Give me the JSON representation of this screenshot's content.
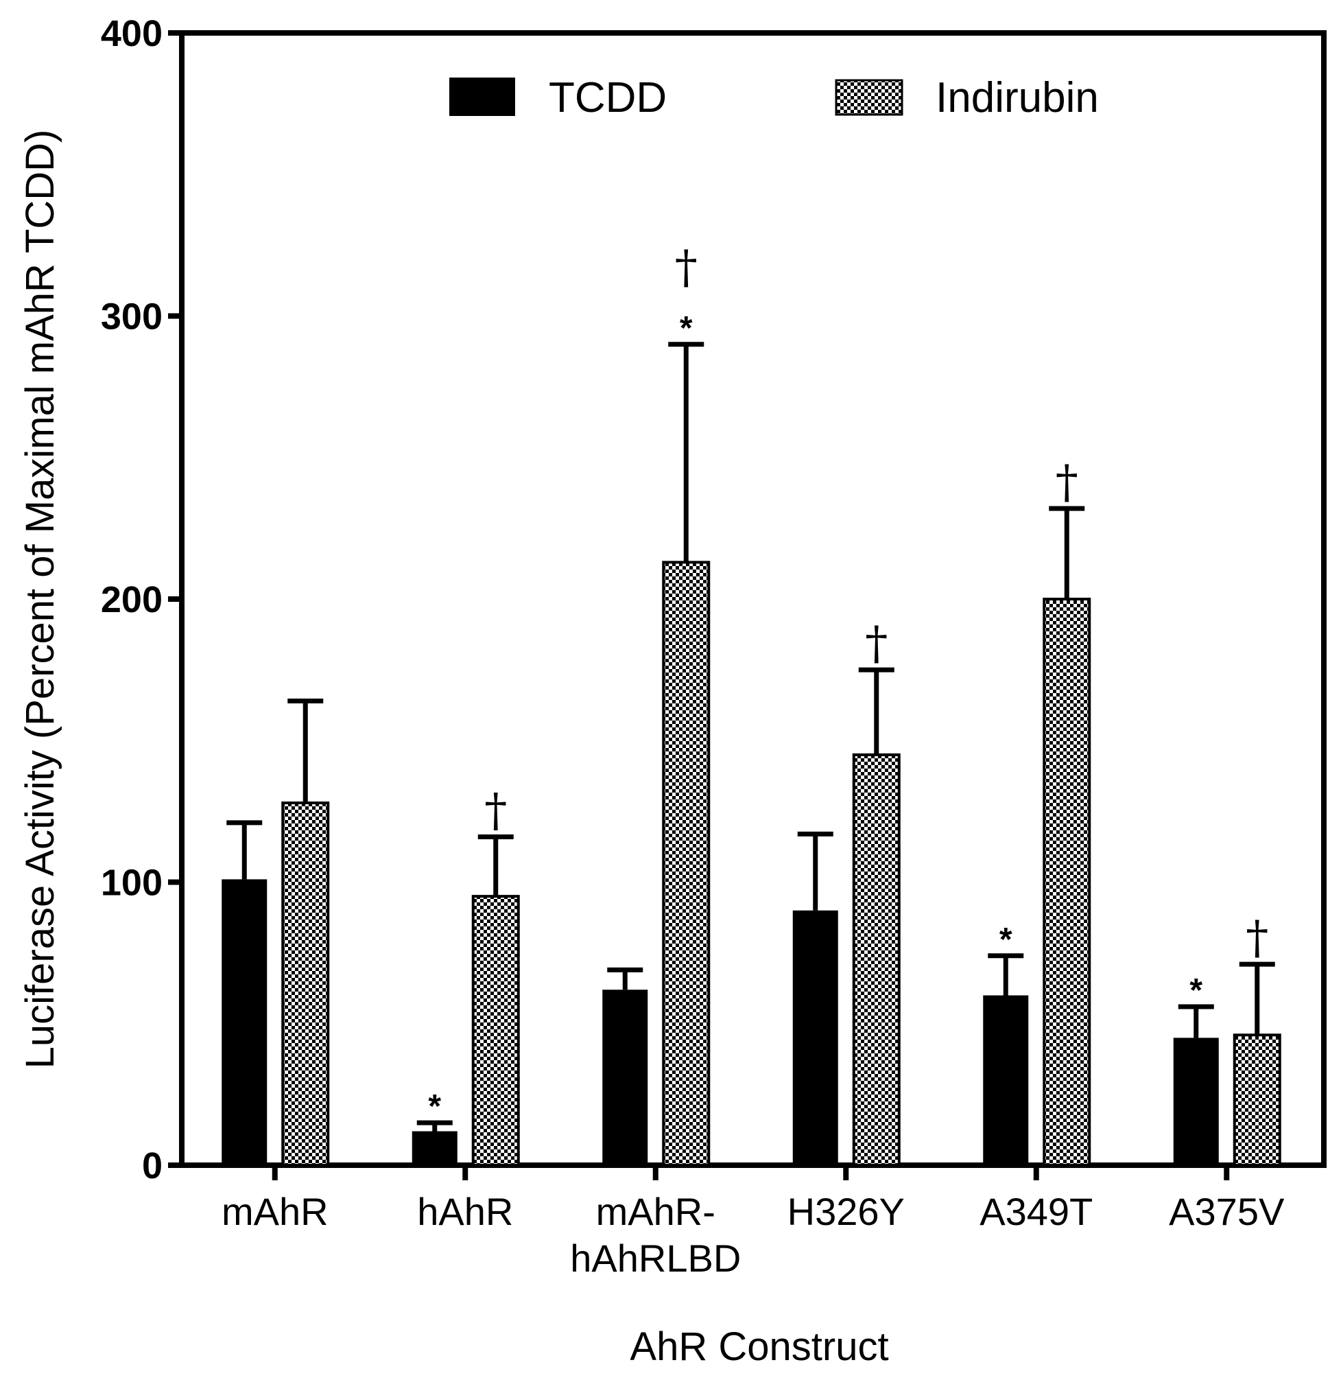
{
  "chart_data": {
    "type": "bar",
    "title": "",
    "xlabel": "AhR Construct",
    "ylabel": "Luciferase Activity (Percent of Maximal mAhR TCDD)",
    "ylim": [
      0,
      400
    ],
    "yticks": [
      0,
      100,
      200,
      300,
      400
    ],
    "grid": false,
    "legend_position": "top-center",
    "categories": [
      [
        "mAhR"
      ],
      [
        "hAhR"
      ],
      [
        "mAhR-",
        "hAhRLBD"
      ],
      [
        "H326Y"
      ],
      [
        "A349T"
      ],
      [
        "A375V"
      ]
    ],
    "series": [
      {
        "name": "TCDD",
        "fill": "solid",
        "color": "#000000",
        "values": [
          101,
          12,
          62,
          90,
          60,
          45
        ],
        "error": [
          20,
          3,
          7,
          27,
          14,
          11
        ],
        "marks": [
          "",
          "*",
          "",
          "",
          "*",
          "*"
        ]
      },
      {
        "name": "Indirubin",
        "fill": "checkered",
        "color": "#000000",
        "values": [
          128,
          95,
          213,
          145,
          200,
          46
        ],
        "error": [
          36,
          21,
          77,
          30,
          32,
          25
        ],
        "marks": [
          "",
          "†",
          "*†",
          "†",
          "†",
          "†"
        ]
      }
    ]
  }
}
